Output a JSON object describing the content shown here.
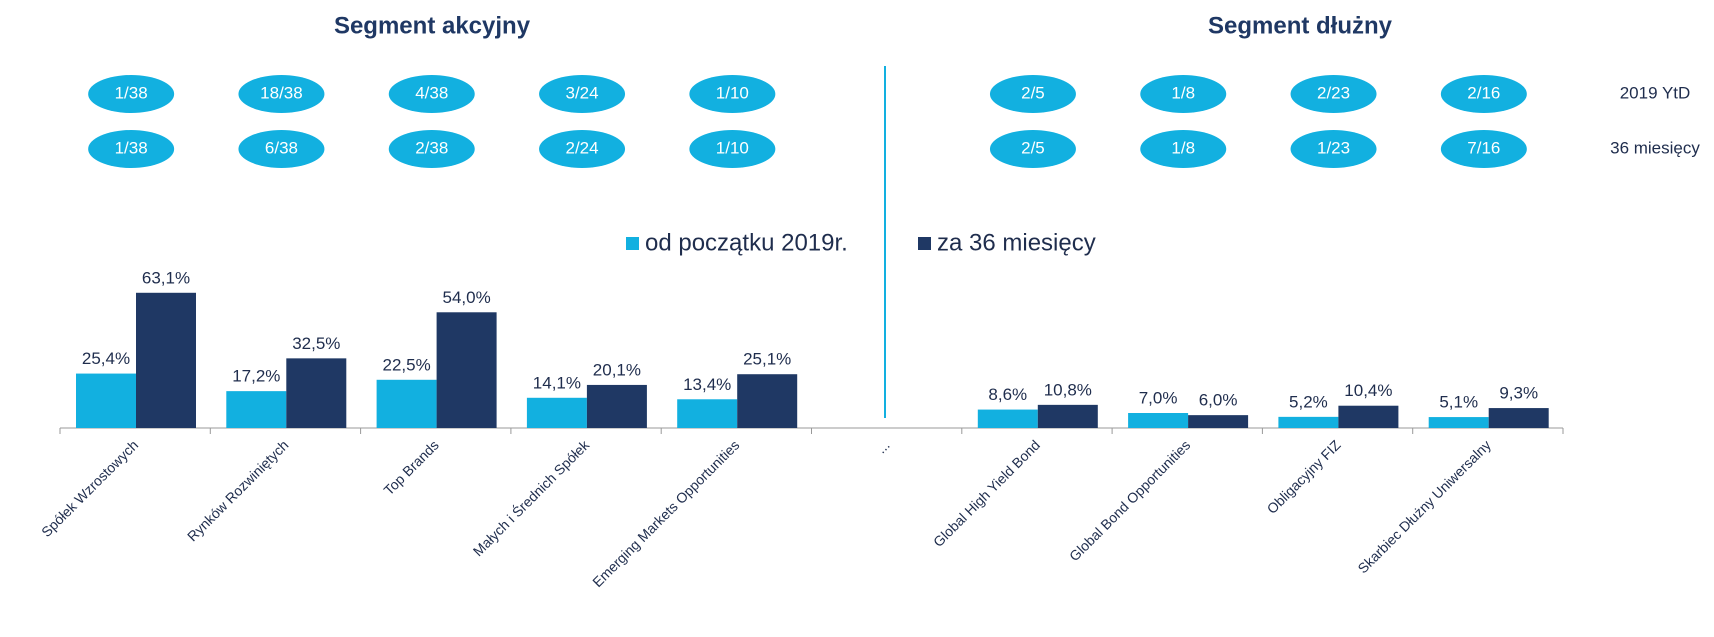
{
  "chart_data": {
    "type": "bar",
    "titles": [
      "Segment akcyjny",
      "Segment dłużny"
    ],
    "categories": [
      "Spółek Wzrostowych",
      "Rynków Rozwiniętych",
      "Top Brands",
      "Małych i Średnich Spółek",
      "Emerging Markets Opportunities",
      "...",
      "Global High Yield Bond",
      "Global Bond Opportunities",
      "Obligacyjny FIZ",
      "Skarbiec Dłużny Uniwersalny"
    ],
    "series": [
      {
        "name": "od początku 2019r.",
        "color": "#12b0e0",
        "values": [
          25.4,
          17.2,
          22.5,
          14.1,
          13.4,
          null,
          8.6,
          7.0,
          5.2,
          5.1
        ],
        "value_labels": [
          "25,4%",
          "17,2%",
          "22,5%",
          "14,1%",
          "13,4%",
          null,
          "8,6%",
          "7,0%",
          "5,2%",
          "5,1%"
        ]
      },
      {
        "name": "za 36 miesięcy",
        "color": "#1f3864",
        "values": [
          63.1,
          32.5,
          54.0,
          20.1,
          25.1,
          null,
          10.8,
          6.0,
          10.4,
          9.3
        ],
        "value_labels": [
          "63,1%",
          "32,5%",
          "54,0%",
          "20,1%",
          "25,1%",
          null,
          "10,8%",
          "6,0%",
          "10,4%",
          "9,3%"
        ]
      }
    ],
    "ylim": [
      0,
      70
    ],
    "rankings": [
      {
        "label": "2019 YtD",
        "values": [
          "1/38",
          "18/38",
          "4/38",
          "3/24",
          "1/10",
          null,
          "2/5",
          "1/8",
          "2/23",
          "2/16"
        ]
      },
      {
        "label": "36 miesięcy",
        "values": [
          "1/38",
          "6/38",
          "2/38",
          "2/24",
          "1/10",
          null,
          "2/5",
          "1/8",
          "1/23",
          "7/16"
        ]
      }
    ]
  }
}
